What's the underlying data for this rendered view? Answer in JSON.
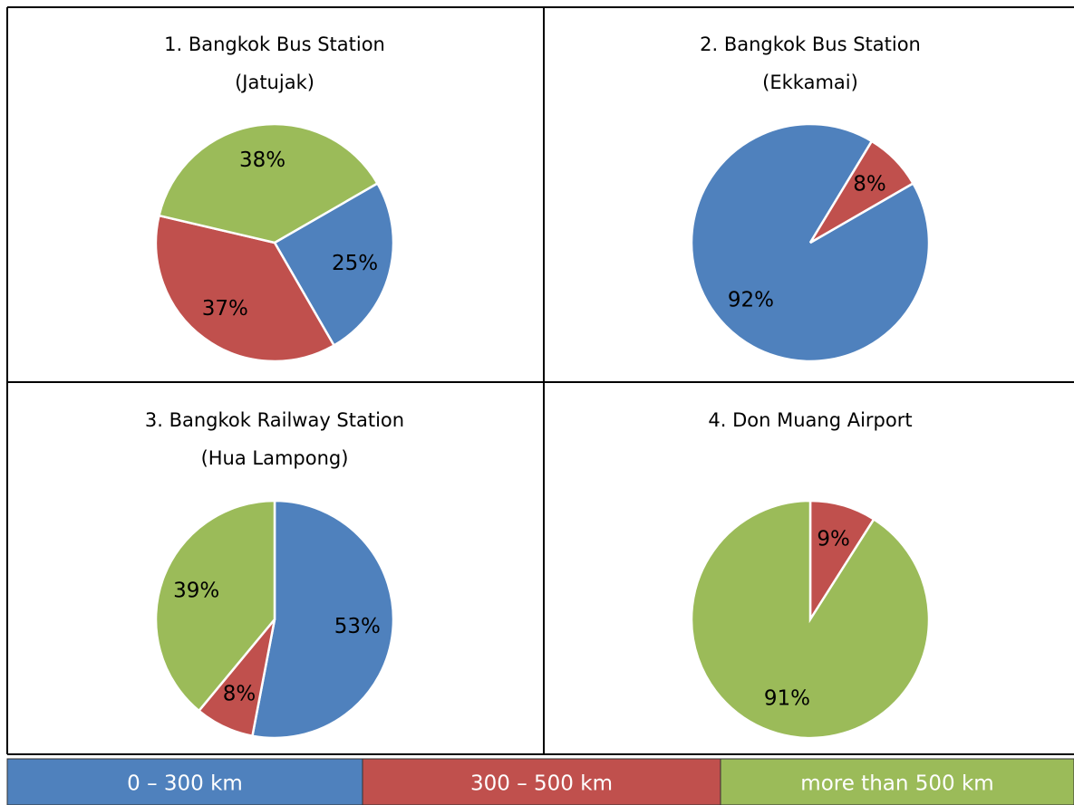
{
  "chart_data": [
    {
      "type": "pie",
      "title_lines": [
        "1. Bangkok Bus Station",
        "(Jatujak)"
      ],
      "values": [
        25,
        37,
        38
      ],
      "value_labels": [
        "25%",
        "37%",
        "38%"
      ],
      "colors": [
        "#4f81bd",
        "#c0504d",
        "#9bbb59"
      ],
      "startangle": 60
    },
    {
      "type": "pie",
      "title_lines": [
        "2. Bangkok Bus Station",
        "(Ekkamai)"
      ],
      "values": [
        92,
        8
      ],
      "value_labels": [
        "92%",
        "8%"
      ],
      "colors": [
        "#4f81bd",
        "#c0504d"
      ],
      "startangle": 60
    },
    {
      "type": "pie",
      "title_lines": [
        "3. Bangkok Railway Station",
        "(Hua Lampong)"
      ],
      "values": [
        53,
        8,
        39
      ],
      "value_labels": [
        "53%",
        "8%",
        "39%"
      ],
      "colors": [
        "#4f81bd",
        "#c0504d",
        "#9bbb59"
      ],
      "startangle": 0
    },
    {
      "type": "pie",
      "title_lines": [
        "4. Don Muang Airport"
      ],
      "values": [
        9,
        91
      ],
      "value_labels": [
        "9%",
        "91%"
      ],
      "colors": [
        "#c0504d",
        "#9bbb59"
      ],
      "startangle": 0
    }
  ],
  "legend": {
    "items": [
      {
        "label": "0 – 300 km",
        "color": "#4f81bd"
      },
      {
        "label": "300 – 500 km",
        "color": "#c0504d"
      },
      {
        "label": "more than 500 km",
        "color": "#9bbb59"
      }
    ]
  }
}
